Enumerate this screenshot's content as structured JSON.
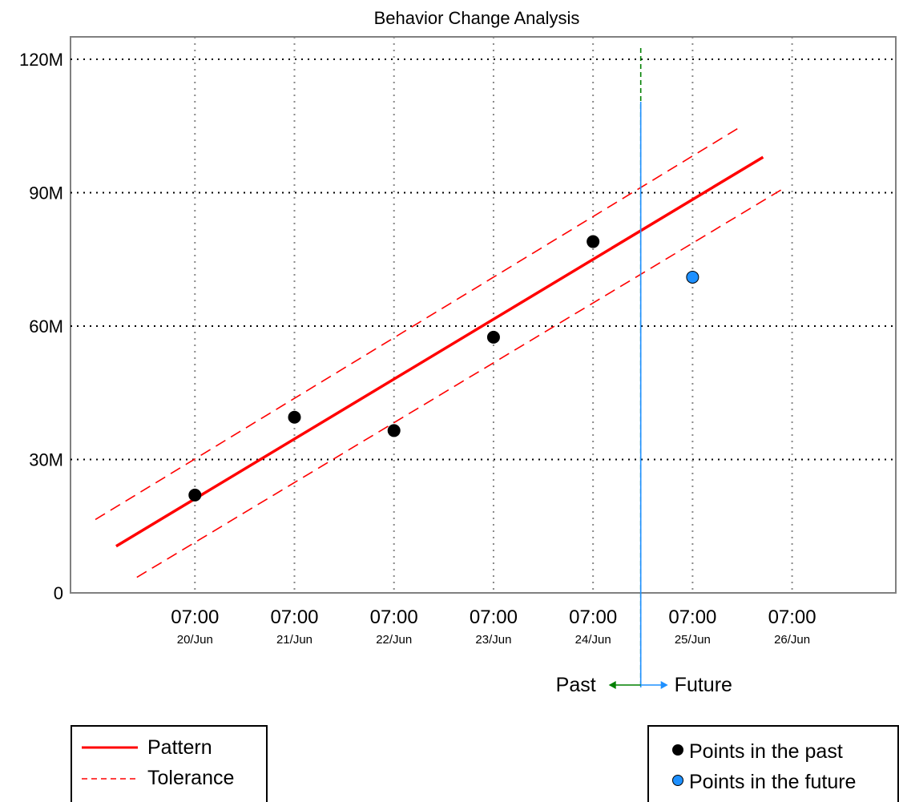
{
  "chart_data": {
    "type": "scatter",
    "title": "Behavior Change Analysis",
    "xlabel": "",
    "ylabel": "",
    "ylim": [
      0,
      120
    ],
    "y_unit": "M",
    "y_ticks": [
      {
        "value": 0,
        "label": "0"
      },
      {
        "value": 30,
        "label": "30M"
      },
      {
        "value": 60,
        "label": "60M"
      },
      {
        "value": 90,
        "label": "90M"
      },
      {
        "value": 120,
        "label": "120M"
      }
    ],
    "x_ticks": [
      {
        "date": "2000-06-20T07:00",
        "time": "07:00",
        "day": "20/Jun"
      },
      {
        "date": "2000-06-21T07:00",
        "time": "07:00",
        "day": "21/Jun"
      },
      {
        "date": "2000-06-22T07:00",
        "time": "07:00",
        "day": "22/Jun"
      },
      {
        "date": "2000-06-23T07:00",
        "time": "07:00",
        "day": "23/Jun"
      },
      {
        "date": "2000-06-24T07:00",
        "time": "07:00",
        "day": "24/Jun"
      },
      {
        "date": "2000-06-25T07:00",
        "time": "07:00",
        "day": "25/Jun"
      },
      {
        "date": "2000-06-26T07:00",
        "time": "07:00",
        "day": "26/Jun"
      }
    ],
    "xlim": [
      "2000-06-19T01:00",
      "2000-06-27T08:00"
    ],
    "grid": true,
    "pattern": {
      "name": "Pattern",
      "color": "#ff0000",
      "points": [
        {
          "x": "2000-06-19T12:00",
          "y": 10.5
        },
        {
          "x": "2000-06-26T00:00",
          "y": 98
        }
      ]
    },
    "tolerance": {
      "name": "Tolerance",
      "color": "#ff0000",
      "upper": [
        {
          "x": "2000-06-19T07:00",
          "y": 16.5
        },
        {
          "x": "2000-06-25T18:00",
          "y": 104.5
        }
      ],
      "lower": [
        {
          "x": "2000-06-19T17:00",
          "y": 3.5
        },
        {
          "x": "2000-06-26T05:00",
          "y": 91
        }
      ]
    },
    "past_points": {
      "name": "Points in the past",
      "color": "#000000",
      "points": [
        {
          "x": "2000-06-20T07:00",
          "y": 22
        },
        {
          "x": "2000-06-21T07:00",
          "y": 39.5
        },
        {
          "x": "2000-06-22T07:00",
          "y": 36.5
        },
        {
          "x": "2000-06-23T07:00",
          "y": 57.5
        },
        {
          "x": "2000-06-24T07:00",
          "y": 79
        }
      ]
    },
    "future_points": {
      "name": "Points in the future",
      "color": "#1e90ff",
      "points": [
        {
          "x": "2000-06-25T07:00",
          "y": 71
        }
      ]
    },
    "now": "2000-06-24T18:30",
    "past_label": "Past",
    "future_label": "Future",
    "past_color": "#008000",
    "future_color": "#1e90ff"
  },
  "legend_left": {
    "pattern_label": "Pattern",
    "tolerance_label": "Tolerance"
  },
  "legend_right": {
    "past_label": "Points in the past",
    "future_label": "Points in the future"
  }
}
